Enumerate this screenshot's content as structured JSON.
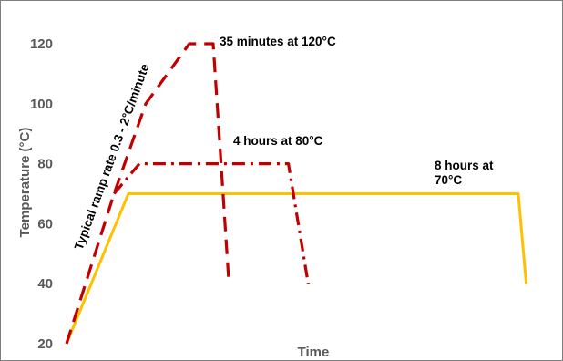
{
  "chart_data": {
    "type": "line",
    "title": "",
    "xlabel": "Time",
    "ylabel": "Temperature (°C)",
    "ylim": [
      20,
      120
    ],
    "yticks": [
      20,
      40,
      60,
      80,
      100,
      120
    ],
    "grid": false,
    "legend": "none",
    "series": [
      {
        "color": "#c00000",
        "style": "dashed",
        "points": [
          [
            0,
            20
          ],
          [
            0.6,
            70
          ],
          [
            1.0,
            100
          ],
          [
            1.55,
            120
          ],
          [
            1.85,
            120
          ],
          [
            1.95,
            80
          ],
          [
            2.05,
            40
          ]
        ]
      },
      {
        "color": "#c00000",
        "style": "dash-dot",
        "points": [
          [
            0.6,
            70
          ],
          [
            0.92,
            80
          ],
          [
            2.8,
            80
          ],
          [
            3.05,
            40
          ]
        ]
      },
      {
        "color": "#ffc000",
        "style": "solid",
        "points": [
          [
            0,
            20
          ],
          [
            0.78,
            70
          ],
          [
            5.7,
            70
          ],
          [
            5.8,
            40
          ]
        ]
      }
    ],
    "annotations": [
      {
        "text": "35 minutes at 120°C"
      },
      {
        "text": "4 hours at 80°C"
      },
      {
        "text": "8 hours at",
        "text2": "70°C"
      },
      {
        "text": "Typical ramp rate 0.3 - 2°C/minute"
      }
    ]
  }
}
